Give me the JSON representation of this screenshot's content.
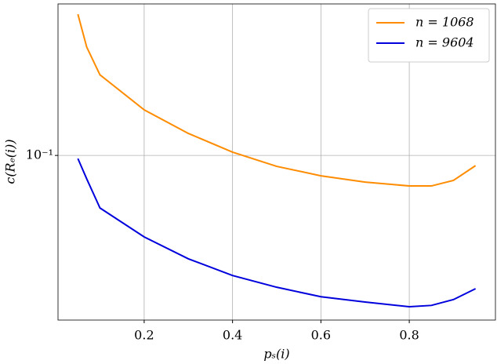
{
  "chart_data": {
    "type": "line",
    "x_label": "pₛ(i)",
    "y_label": "c(Rₑ(i))",
    "x": [
      0.05,
      0.07,
      0.1,
      0.2,
      0.3,
      0.4,
      0.5,
      0.6,
      0.7,
      0.8,
      0.85,
      0.9,
      0.95
    ],
    "series": [
      {
        "name": "n = 1068",
        "color": "#ff8c00",
        "values": [
          0.358,
          0.266,
          0.207,
          0.151,
          0.122,
          0.103,
          0.0906,
          0.0832,
          0.0786,
          0.0759,
          0.0759,
          0.0798,
          0.0912
        ]
      },
      {
        "name": "n = 9604",
        "color": "#0000dd",
        "values": [
          0.0972,
          0.0809,
          0.0622,
          0.0479,
          0.0393,
          0.0338,
          0.0304,
          0.0279,
          0.0266,
          0.0255,
          0.0258,
          0.0272,
          0.03
        ]
      }
    ],
    "xlim": [
      0.005,
      0.995
    ],
    "xticks": [
      0.2,
      0.4,
      0.6,
      0.8
    ],
    "ylim": [
      0.0226,
      0.393
    ],
    "yticks": [
      {
        "value": 0.1,
        "label": "10⁻¹"
      }
    ],
    "y_scale": "log",
    "grid": true,
    "legend": "upper right"
  }
}
